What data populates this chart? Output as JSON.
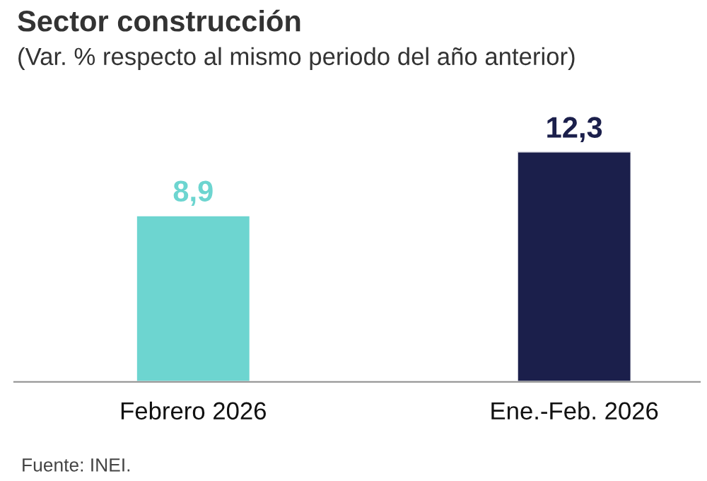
{
  "chart_data": {
    "type": "bar",
    "title": "Sector construcción",
    "subtitle": "(Var. % respecto al mismo periodo del año anterior)",
    "categories": [
      "Febrero 2026",
      "Ene.-Feb. 2026"
    ],
    "values": [
      8.9,
      12.3
    ],
    "colors": [
      "#6dd5d0",
      "#1b1f4b"
    ],
    "value_labels": [
      "8,9",
      "12,3"
    ],
    "tick_labels": "x",
    "grid": false,
    "legend": false,
    "annotations": [
      "Fuente: INEI."
    ]
  }
}
